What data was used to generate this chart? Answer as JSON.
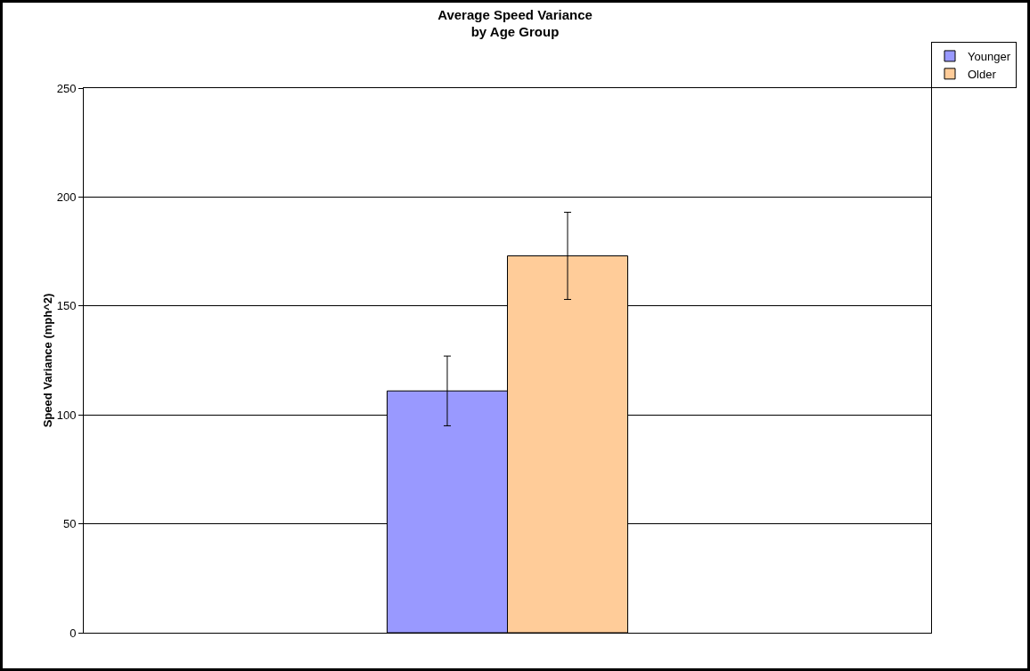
{
  "chart_data": {
    "type": "bar",
    "title": "Average Speed Variance\nby Age Group",
    "ylabel": "Speed Variance (mph^2)",
    "categories": [
      null
    ],
    "series": [
      {
        "name": "Younger",
        "color": "#9999ff",
        "values": [
          111
        ],
        "errors": [
          16
        ]
      },
      {
        "name": "Older",
        "color": "#ffcc99",
        "values": [
          173
        ],
        "errors": [
          20
        ]
      }
    ],
    "ylim": [
      0,
      250
    ],
    "yticks": [
      0,
      50,
      100,
      150,
      200,
      250
    ],
    "grid": "y",
    "legend": "top right"
  }
}
